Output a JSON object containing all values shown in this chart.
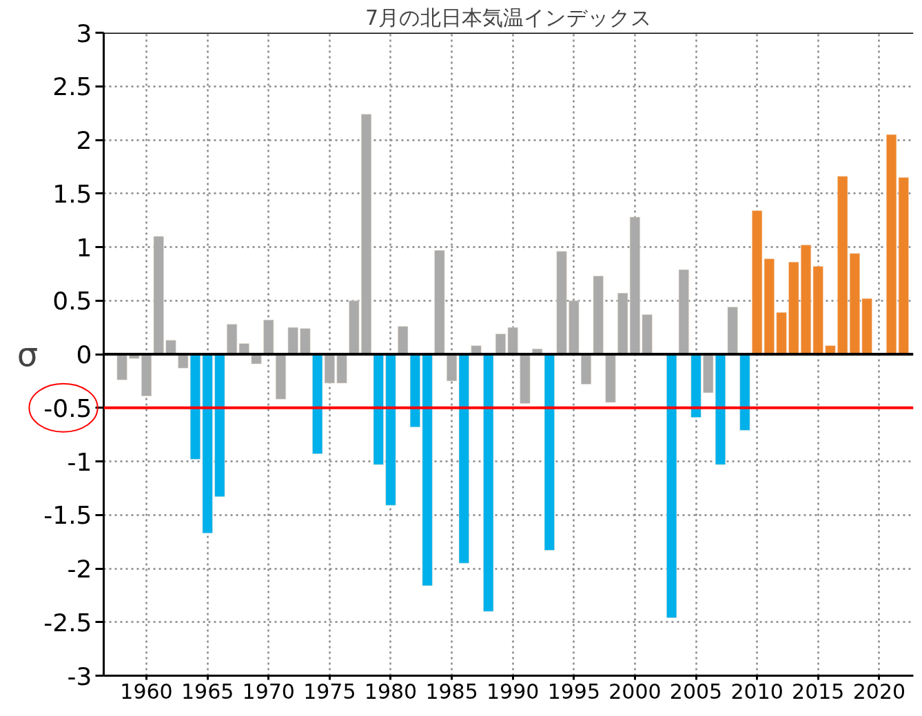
{
  "chart_data": {
    "type": "bar",
    "title": "7月の北日本気温インデックス",
    "ylabel": "σ",
    "x": [
      1958,
      1959,
      1960,
      1961,
      1962,
      1963,
      1964,
      1965,
      1966,
      1967,
      1968,
      1969,
      1970,
      1971,
      1972,
      1973,
      1974,
      1975,
      1976,
      1977,
      1978,
      1979,
      1980,
      1981,
      1982,
      1983,
      1984,
      1985,
      1986,
      1987,
      1988,
      1989,
      1990,
      1991,
      1992,
      1993,
      1994,
      1995,
      1996,
      1997,
      1998,
      1999,
      2000,
      2001,
      2002,
      2003,
      2004,
      2005,
      2006,
      2007,
      2008,
      2009,
      2010,
      2011,
      2012,
      2013,
      2014,
      2015,
      2016,
      2017,
      2018,
      2019,
      2020,
      2021,
      2022
    ],
    "values": [
      -0.24,
      -0.04,
      -0.39,
      1.1,
      0.13,
      -0.13,
      -0.98,
      -1.67,
      -1.33,
      0.28,
      0.1,
      -0.09,
      0.32,
      -0.42,
      0.25,
      0.24,
      -0.93,
      -0.27,
      -0.27,
      0.5,
      2.24,
      -1.03,
      -1.41,
      0.26,
      -0.68,
      -2.16,
      0.97,
      -0.25,
      -1.95,
      0.08,
      -2.4,
      0.19,
      0.25,
      -0.46,
      0.05,
      -1.83,
      0.96,
      0.5,
      -0.28,
      0.73,
      -0.45,
      0.57,
      1.28,
      0.37,
      null,
      -2.46,
      0.79,
      -0.59,
      -0.36,
      -1.03,
      0.44,
      -0.71,
      1.34,
      0.89,
      0.39,
      0.86,
      1.02,
      0.82,
      0.08,
      1.66,
      0.94,
      0.52,
      null,
      2.05,
      1.65
    ],
    "colors": [
      "#aaaaaa",
      "#aaaaaa",
      "#aaaaaa",
      "#aaaaaa",
      "#aaaaaa",
      "#aaaaaa",
      "#00b0eb",
      "#00b0eb",
      "#00b0eb",
      "#aaaaaa",
      "#aaaaaa",
      "#aaaaaa",
      "#aaaaaa",
      "#aaaaaa",
      "#aaaaaa",
      "#aaaaaa",
      "#00b0eb",
      "#aaaaaa",
      "#aaaaaa",
      "#aaaaaa",
      "#aaaaaa",
      "#00b0eb",
      "#00b0eb",
      "#aaaaaa",
      "#00b0eb",
      "#00b0eb",
      "#aaaaaa",
      "#aaaaaa",
      "#00b0eb",
      "#aaaaaa",
      "#00b0eb",
      "#aaaaaa",
      "#aaaaaa",
      "#aaaaaa",
      "#aaaaaa",
      "#00b0eb",
      "#aaaaaa",
      "#aaaaaa",
      "#aaaaaa",
      "#aaaaaa",
      "#aaaaaa",
      "#aaaaaa",
      "#aaaaaa",
      "#aaaaaa",
      "#aaaaaa",
      "#00b0eb",
      "#aaaaaa",
      "#00b0eb",
      "#aaaaaa",
      "#00b0eb",
      "#aaaaaa",
      "#00b0eb",
      "#ee8429",
      "#ee8429",
      "#ee8429",
      "#ee8429",
      "#ee8429",
      "#ee8429",
      "#ee8429",
      "#ee8429",
      "#ee8429",
      "#ee8429",
      "#ee8429",
      "#ee8429",
      "#ee8429"
    ],
    "xlim": [
      1956.5,
      2022.8
    ],
    "xticks": [
      1960,
      1965,
      1970,
      1975,
      1980,
      1985,
      1990,
      1995,
      2000,
      2005,
      2010,
      2015,
      2020
    ],
    "ylim": [
      -3,
      3
    ],
    "yticks": [
      -3,
      -2.5,
      -2,
      -1.5,
      -1,
      -0.5,
      0,
      0.5,
      1,
      1.5,
      2,
      2.5,
      3
    ],
    "ref_lines": [
      {
        "axis": "y",
        "value": 0,
        "color": "#000000"
      },
      {
        "axis": "y",
        "value": -0.5,
        "color": "#ff0000"
      }
    ],
    "grid": true
  }
}
